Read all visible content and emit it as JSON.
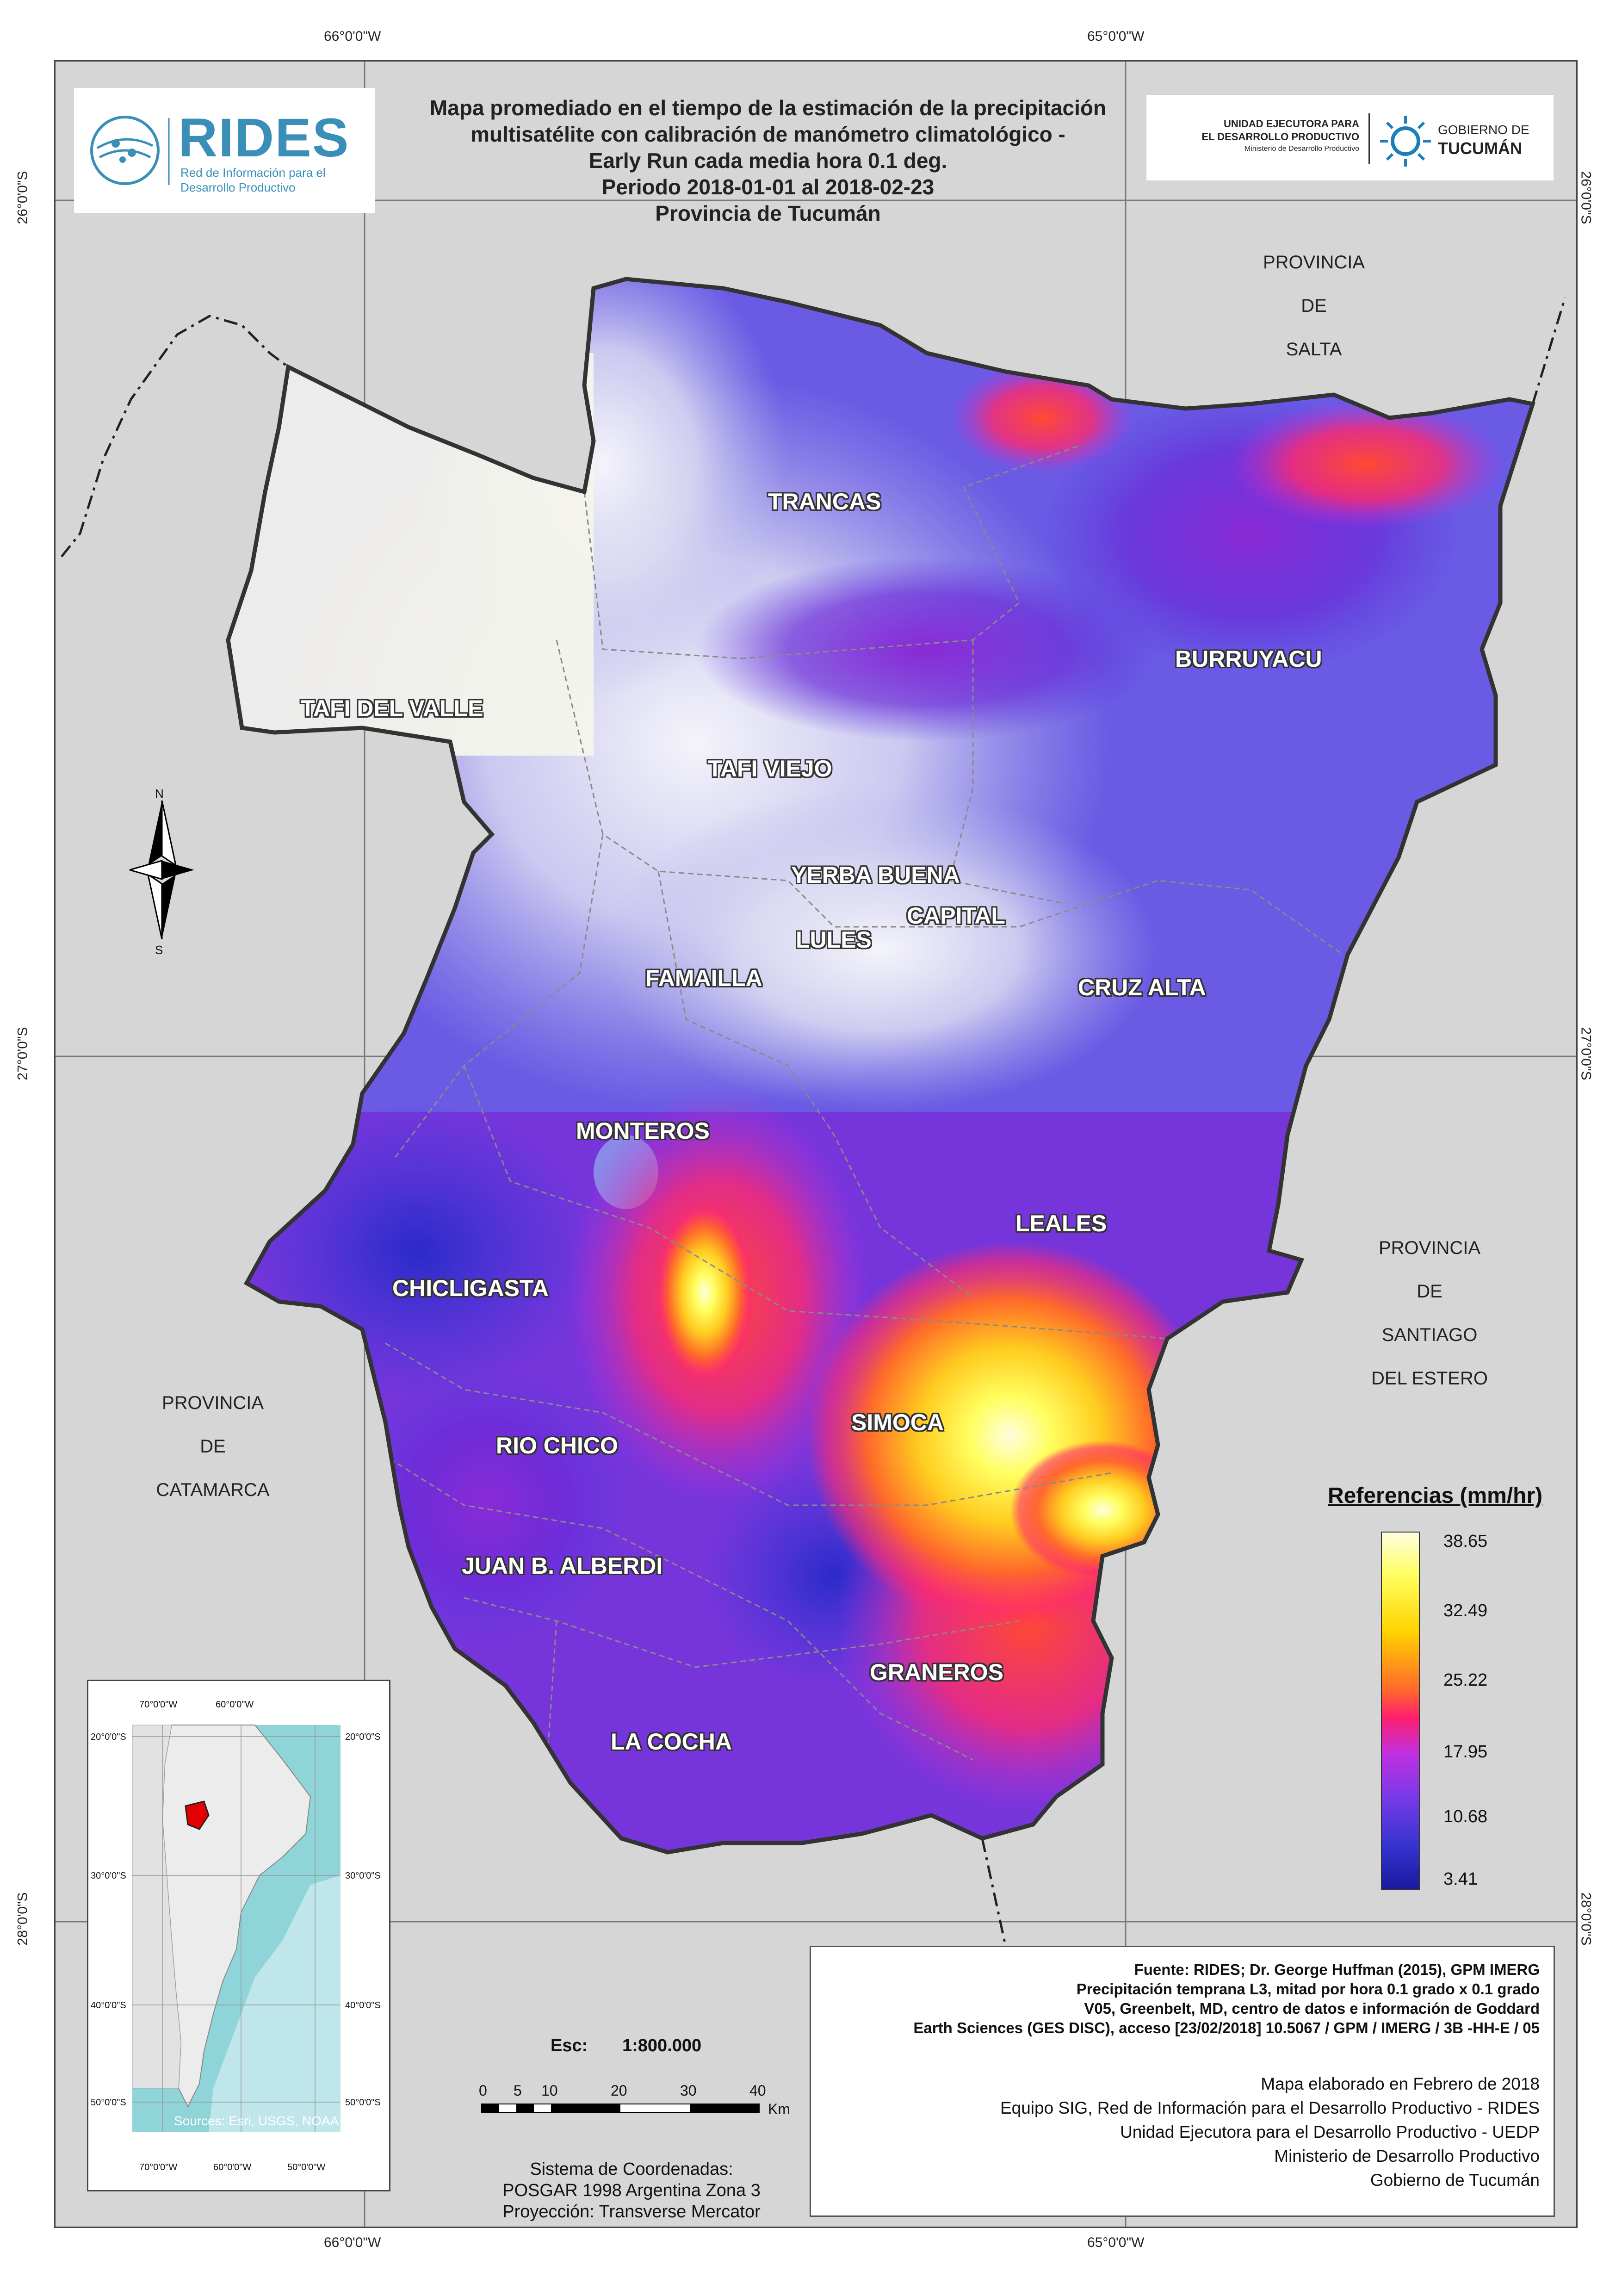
{
  "title": {
    "line1": "Mapa promediado en el tiempo de la estimación de la precipitación",
    "line2": "multisatélite con calibración de manómetro climatológico -",
    "line3": "Early Run cada media hora 0.1 deg.",
    "line4": "Periodo 2018-01-01 al 2018-02-23",
    "line5": "Provincia de Tucumán"
  },
  "logos": {
    "rides_name": "RIDES",
    "rides_sub1": "Red de Información para el",
    "rides_sub2": "Desarrollo Productivo",
    "uedp_line1": "UNIDAD EJECUTORA PARA",
    "uedp_line2": "EL DESARROLLO PRODUCTIVO",
    "uedp_line3": "Ministerio de Desarrollo Productivo",
    "gob_line1": "GOBIERNO DE",
    "gob_line2": "TUCUMÁN"
  },
  "graticule": {
    "top_left": "66°0'0\"W",
    "top_right": "65°0'0\"W",
    "bottom_left": "66°0'0\"W",
    "bottom_right": "65°0'0\"W",
    "lat_26": "26°0'0\"S",
    "lat_27": "27°0'0\"S",
    "lat_28": "28°0'0\"S"
  },
  "departments": [
    "TRANCAS",
    "BURRUYACU",
    "TAFI DEL VALLE",
    "TAFI VIEJO",
    "YERBA BUENA",
    "CAPITAL",
    "LULES",
    "FAMAILLA",
    "CRUZ ALTA",
    "MONTEROS",
    "LEALES",
    "CHICLIGASTA",
    "SIMOCA",
    "RIO CHICO",
    "JUAN B. ALBERDI",
    "GRANEROS",
    "LA COCHA"
  ],
  "provinces": {
    "salta": [
      "PROVINCIA",
      "DE",
      "SALTA"
    ],
    "santiago": [
      "PROVINCIA",
      "DE",
      "SANTIAGO",
      "DEL ESTERO"
    ],
    "catamarca": [
      "PROVINCIA",
      "DE",
      "CATAMARCA"
    ]
  },
  "north_arrow": {
    "n": "N",
    "s": "S"
  },
  "legend": {
    "title": "Referencias (mm/hr)",
    "values": [
      "38.65",
      "32.49",
      "25.22",
      "17.95",
      "10.68",
      "3.41"
    ],
    "colors": [
      "#fffde0",
      "#ffff60",
      "#ffd200",
      "#ff6a2a",
      "#ff1f6e",
      "#c030e0",
      "#7a3ae8",
      "#3434d0",
      "#1a1aa0"
    ]
  },
  "scale": {
    "label": "Esc:",
    "ratio": "1:800.000",
    "ticks": [
      "0",
      "5",
      "10",
      "20",
      "30",
      "40"
    ],
    "unit": "Km"
  },
  "crs": {
    "line1": "Sistema de Coordenadas:",
    "line2": "POSGAR 1998 Argentina Zona 3",
    "line3": "Proyección: Transverse Mercator"
  },
  "inset": {
    "lon_labels": [
      "70°0'0\"W",
      "60°0'0\"W",
      "50°0'0\"W"
    ],
    "lat_labels": [
      "20°0'0\"S",
      "30°0'0\"S",
      "40°0'0\"S",
      "50°0'0\"S"
    ],
    "credit": "Sources: Esri, USGS, NOAA"
  },
  "source": {
    "bold": [
      "Fuente: RIDES; Dr. George Huffman (2015), GPM IMERG",
      "Precipitación temprana L3, mitad por hora 0.1 grado x 0.1 grado",
      "V05, Greenbelt, MD, centro de datos e información de Goddard",
      "Earth Sciences (GES DISC), acceso [23/02/2018] 10.5067 / GPM / IMERG / 3B -HH-E / 05"
    ],
    "normal": [
      "Mapa elaborado en Febrero de 2018",
      "Equipo SIG, Red de Información para el Desarrollo Productivo - RIDES",
      "Unidad Ejecutora para el Desarrollo Productivo - UEDP",
      "Ministerio de Desarrollo Productivo",
      "Gobierno de Tucumán"
    ]
  }
}
